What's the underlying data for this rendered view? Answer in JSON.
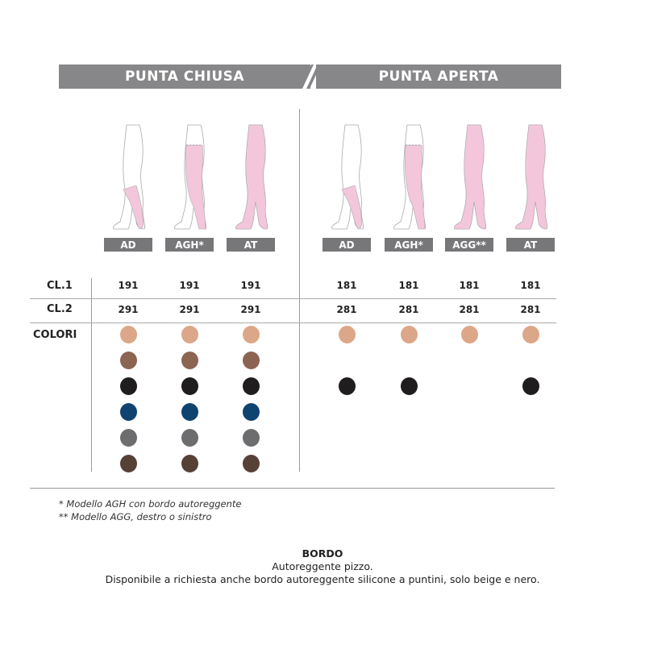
{
  "header": {
    "closed_toe": "PUNTA CHIUSA",
    "open_toe": "PUNTA APERTA"
  },
  "colors": {
    "header_bg": "#87878a",
    "stocking_pink": "#f4c6dc"
  },
  "closed_models": [
    {
      "label": "AD",
      "style": "knee",
      "cl1": "191",
      "cl2": "291"
    },
    {
      "label": "AGH*",
      "style": "thigh",
      "cl1": "191",
      "cl2": "291"
    },
    {
      "label": "AT",
      "style": "tights",
      "cl1": "191",
      "cl2": "291"
    }
  ],
  "open_models": [
    {
      "label": "AD",
      "style": "knee",
      "cl1": "181",
      "cl2": "281"
    },
    {
      "label": "AGH*",
      "style": "thigh",
      "cl1": "181",
      "cl2": "281"
    },
    {
      "label": "AGG**",
      "style": "single",
      "cl1": "181",
      "cl2": "281"
    },
    {
      "label": "AT",
      "style": "tights",
      "cl1": "181",
      "cl2": "281"
    }
  ],
  "rows": {
    "cl1": "CL.1",
    "cl2": "CL.2",
    "colors": "COLORI"
  },
  "swatches": {
    "closed": [
      "#dca789",
      "#8c6452",
      "#1f1d1e",
      "#0f4470",
      "#6d6d6f",
      "#574036"
    ],
    "open": [
      [
        "#dca789",
        null,
        "#1f1d1e"
      ],
      [
        "#dca789",
        null,
        "#1f1d1e"
      ],
      [
        "#dca789",
        null,
        null
      ],
      [
        "#dca789",
        null,
        "#1f1d1e"
      ]
    ]
  },
  "footnotes": [
    "* Modello AGH con bordo autoreggente",
    "** Modello AGG, destro o sinistro"
  ],
  "bordo": {
    "title": "BORDO",
    "line1": "Autoreggente pizzo.",
    "line2": "Disponibile a richiesta anche bordo autoreggente silicone a puntini, solo beige e nero."
  }
}
